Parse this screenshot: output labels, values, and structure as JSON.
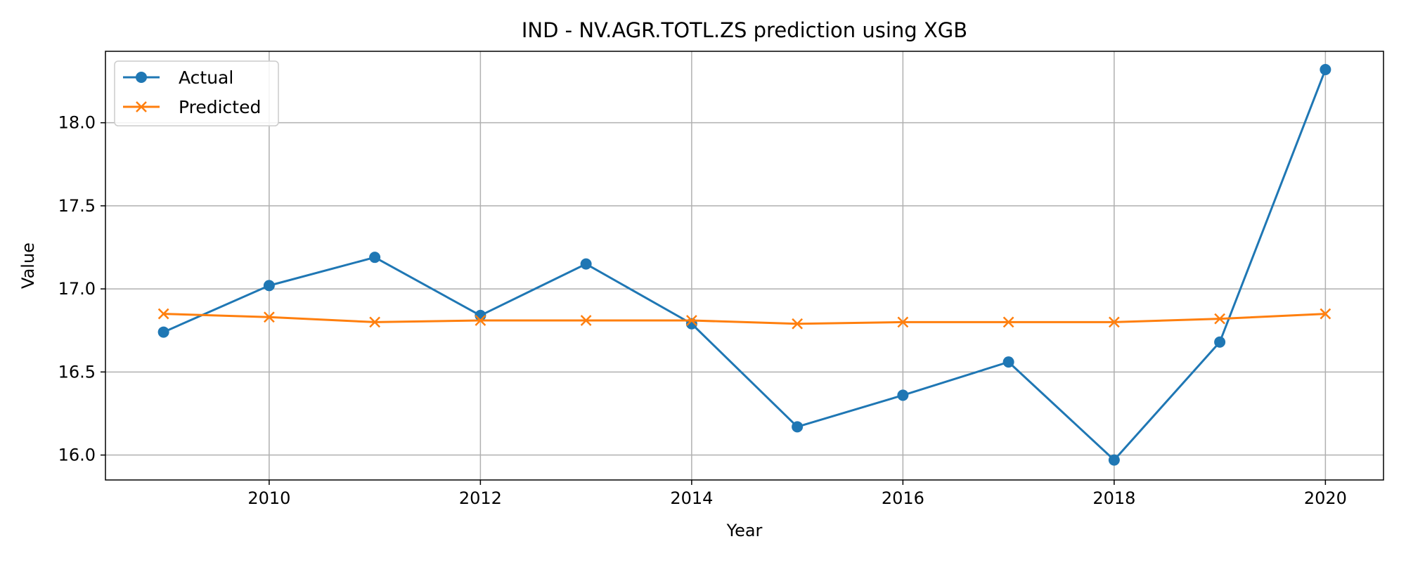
{
  "chart_data": {
    "type": "line",
    "title": "IND - NV.AGR.TOTL.ZS prediction using XGB",
    "xlabel": "Year",
    "ylabel": "Value",
    "x": [
      2009,
      2010,
      2011,
      2012,
      2013,
      2014,
      2015,
      2016,
      2017,
      2018,
      2019,
      2020
    ],
    "xlim": [
      2008.45,
      2020.55
    ],
    "ylim": [
      15.85,
      18.43
    ],
    "xticks": [
      2010,
      2012,
      2014,
      2016,
      2018,
      2020
    ],
    "xtick_labels": [
      "2010",
      "2012",
      "2014",
      "2016",
      "2018",
      "2020"
    ],
    "yticks": [
      16.0,
      16.5,
      17.0,
      17.5,
      18.0
    ],
    "ytick_labels": [
      "16.0",
      "16.5",
      "17.0",
      "17.5",
      "18.0"
    ],
    "grid": true,
    "legend_position": "top-left",
    "series": [
      {
        "name": "Actual",
        "color": "#1f77b4",
        "marker": "circle",
        "values": [
          16.74,
          17.02,
          17.19,
          16.84,
          17.15,
          16.79,
          16.17,
          16.36,
          16.56,
          15.97,
          16.68,
          18.32
        ]
      },
      {
        "name": "Predicted",
        "color": "#ff7f0e",
        "marker": "x",
        "values": [
          16.85,
          16.83,
          16.8,
          16.81,
          16.81,
          16.81,
          16.79,
          16.8,
          16.8,
          16.8,
          16.82,
          16.85
        ]
      }
    ]
  }
}
